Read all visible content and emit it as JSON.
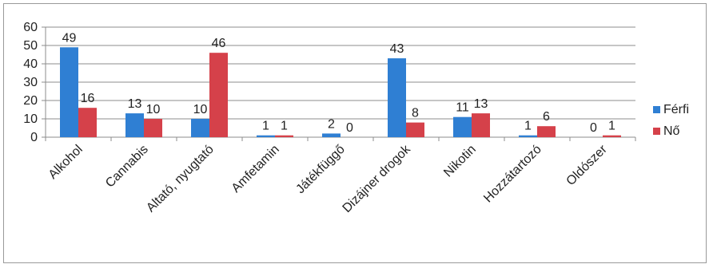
{
  "chart_data": {
    "type": "bar",
    "categories": [
      "Alkohol",
      "Cannabis",
      "Altató, nyugtató",
      "Amfetamin",
      "Játékfüggő",
      "Dizájner drogok",
      "Nikotin",
      "Hozzátartozó",
      "Oldószer"
    ],
    "series": [
      {
        "name": "Férfi",
        "color": "#2f7fd3",
        "values": [
          49,
          13,
          10,
          1,
          2,
          43,
          11,
          1,
          0
        ]
      },
      {
        "name": "Nő",
        "color": "#d5414a",
        "values": [
          16,
          10,
          46,
          1,
          0,
          8,
          13,
          6,
          1
        ]
      }
    ],
    "ylim": [
      0,
      60
    ],
    "yticks": [
      0,
      10,
      20,
      30,
      40,
      50,
      60
    ],
    "grid": true,
    "legend_position": "right",
    "title": "",
    "xlabel": "",
    "ylabel": ""
  }
}
